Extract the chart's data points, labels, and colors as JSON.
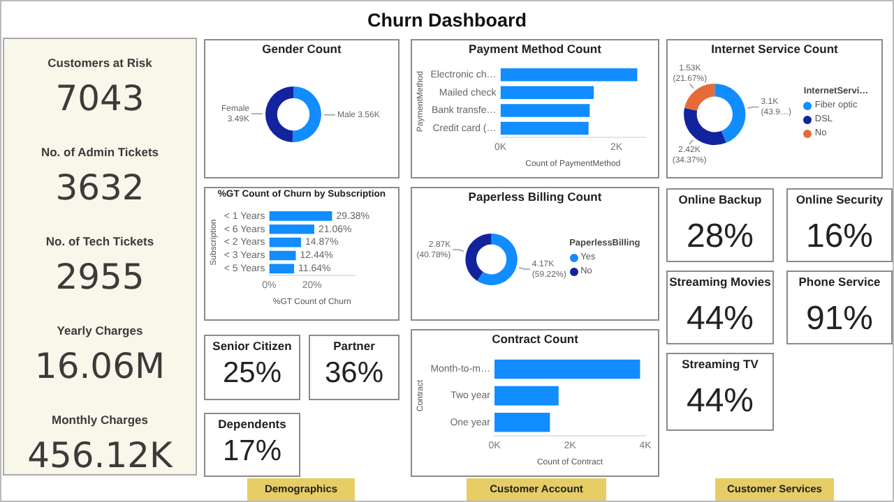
{
  "chart_data": [
    {
      "type": "other",
      "title": "Churn Dashboard",
      "annotations": [
        "Demographics",
        "Customer Account",
        "Customer Services"
      ]
    },
    {
      "type": "other",
      "annotations": [
        "Customers at Risk",
        "7043",
        "No. of Admin Tickets",
        "3632",
        "No. of Tech Tickets",
        "2955",
        "Yearly Charges",
        "16.06M",
        "Monthly Charges",
        "456.12K"
      ]
    },
    {
      "type": "donut",
      "title": "Gender Count",
      "categories": [
        "Male",
        "Female"
      ],
      "values": [
        3560,
        3490
      ],
      "value_labels": [
        "3.56K",
        "3.49K"
      ],
      "colors": [
        "#118dff",
        "#12239e"
      ]
    },
    {
      "type": "bar",
      "orientation": "horizontal",
      "title": "Payment Method Count",
      "categories": [
        "Electronic ch…",
        "Mailed check",
        "Bank transfe…",
        "Credit card (…"
      ],
      "values": [
        2360,
        1610,
        1540,
        1520
      ],
      "color": "#118dff",
      "xlim": [
        0,
        2500
      ],
      "xticks": [
        {
          "value": 0,
          "label": "0K"
        },
        {
          "value": 2000,
          "label": "2K"
        }
      ],
      "xlabel": "Count of PaymentMethod",
      "ylabel": "PaymentMethod"
    },
    {
      "type": "donut",
      "title": "Internet Service Count",
      "categories": [
        "Fiber optic",
        "DSL",
        "No"
      ],
      "values": [
        3096,
        2421,
        1526
      ],
      "value_labels": [
        "3.1K (43.9…)",
        "2.42K (34.37%)",
        "1.53K (21.67%)"
      ],
      "colors": [
        "#118dff",
        "#12239e",
        "#e66c37"
      ],
      "legend": "right",
      "legend_title": "InternetServi…"
    },
    {
      "type": "bar",
      "orientation": "horizontal",
      "title": "%GT Count of Churn by Subscription",
      "categories": [
        "< 1 Years",
        "< 6 Years",
        "< 2 Years",
        "< 3 Years",
        "< 5 Years"
      ],
      "values": [
        29.38,
        21.06,
        14.87,
        12.44,
        11.64
      ],
      "value_labels": [
        "29.38%",
        "21.06%",
        "14.87%",
        "12.44%",
        "11.64%"
      ],
      "color": "#118dff",
      "xlim": [
        0,
        40
      ],
      "xticks": [
        {
          "value": 0,
          "label": "0%"
        },
        {
          "value": 20,
          "label": "20%"
        }
      ],
      "xlabel": "%GT Count of Churn",
      "ylabel": "Subscription"
    },
    {
      "type": "donut",
      "title": "Paperless Billing Count",
      "categories": [
        "Yes",
        "No"
      ],
      "values": [
        4170,
        2870
      ],
      "value_labels": [
        "4.17K (59.22%)",
        "2.87K (40.78%)"
      ],
      "colors": [
        "#118dff",
        "#12239e"
      ],
      "legend": "right",
      "legend_title": "PaperlessBilling"
    },
    {
      "type": "other",
      "title": "Online Backup",
      "annotations": [
        "28%"
      ]
    },
    {
      "type": "other",
      "title": "Online Security",
      "annotations": [
        "16%"
      ]
    },
    {
      "type": "other",
      "title": "Streaming Movies",
      "annotations": [
        "44%"
      ]
    },
    {
      "type": "other",
      "title": "Phone Service",
      "annotations": [
        "91%"
      ]
    },
    {
      "type": "other",
      "title": "Senior Citizen",
      "annotations": [
        "25%"
      ]
    },
    {
      "type": "other",
      "title": "Partner",
      "annotations": [
        "36%"
      ]
    },
    {
      "type": "bar",
      "orientation": "horizontal",
      "title": "Contract Count",
      "categories": [
        "Month-to-m…",
        "Two year",
        "One year"
      ],
      "values": [
        3860,
        1700,
        1470
      ],
      "color": "#118dff",
      "xlim": [
        0,
        4000
      ],
      "xticks": [
        {
          "value": 0,
          "label": "0K"
        },
        {
          "value": 2000,
          "label": "2K"
        },
        {
          "value": 4000,
          "label": "4K"
        }
      ],
      "xlabel": "Count of Contract",
      "ylabel": "Contract"
    },
    {
      "type": "other",
      "title": "Streaming TV",
      "annotations": [
        "44%"
      ]
    },
    {
      "type": "other",
      "title": "Dependents",
      "annotations": [
        "17%"
      ]
    }
  ]
}
